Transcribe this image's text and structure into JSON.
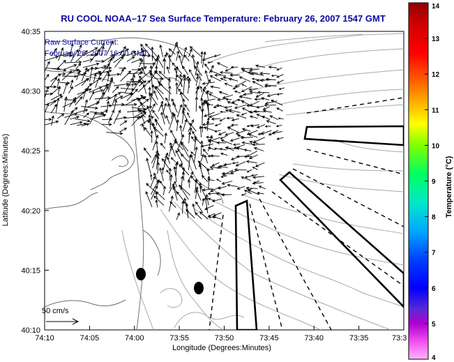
{
  "title": "RU COOL  NOAA–17  Sea Surface Temperature:  February 26, 2007 1547 GMT",
  "overlay": {
    "line1": "Raw Surface Current:",
    "line2": "February 26, 2007 16:00 GMT"
  },
  "axes": {
    "xlabel": "Longitude (Degrees:Minutes)",
    "ylabel": "Latitude (Degrees:Minutes)",
    "xticks": [
      "74:10",
      "74:05",
      "74:00",
      "73:55",
      "73:50",
      "73:45",
      "73:40",
      "73:35",
      "73:3"
    ],
    "yticks": [
      "40:35",
      "40:30",
      "40:25",
      "40:20",
      "40:15",
      "40:10"
    ]
  },
  "colorbar": {
    "label": "Temperature (°C)",
    "min": 4,
    "max": 14,
    "ticks": [
      "4",
      "5",
      "6",
      "7",
      "8",
      "9",
      "10",
      "11",
      "12",
      "13",
      "14"
    ]
  },
  "scale_label": "50 cm/s",
  "colors": {
    "title": "#0a0aa0",
    "land_outline": "#6e6e6e",
    "isobath": "#a8a8a8",
    "vector": "#000000"
  }
}
